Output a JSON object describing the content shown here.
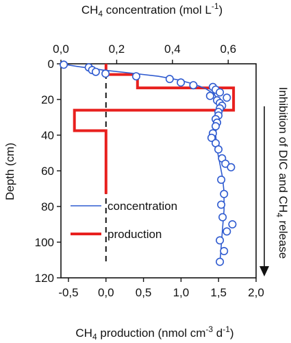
{
  "chart_data": {
    "type": "line",
    "x_top": {
      "label_main": "CH",
      "label_sub": "4",
      "label_rest": " concentration (mol L",
      "label_sup": "-1",
      "label_end": ")",
      "ticks": [
        "0,0",
        "0,2",
        "0,4",
        "0,6"
      ],
      "tick_values": [
        0.0,
        0.2,
        0.4,
        0.6
      ],
      "range": [
        0.0,
        0.7
      ]
    },
    "x_bottom": {
      "label_main": "CH",
      "label_sub": "4",
      "label_rest": " production (nmol cm",
      "label_sup": "-3",
      "label_mid": " d",
      "label_sup2": "-1",
      "label_end": ")",
      "ticks": [
        "-0,5",
        "0,0",
        "0,5",
        "1,0",
        "1,5",
        "2,0"
      ],
      "tick_values": [
        -0.5,
        0.0,
        0.5,
        1.0,
        1.5,
        2.0
      ],
      "range": [
        -0.6,
        2.0
      ]
    },
    "y": {
      "label": "Depth (cm)",
      "ticks": [
        "0",
        "20",
        "40",
        "60",
        "80",
        "100",
        "120"
      ],
      "tick_values": [
        0,
        20,
        40,
        60,
        80,
        100,
        120
      ],
      "range": [
        0,
        120
      ],
      "inverted": true
    },
    "right_annotation": {
      "part1": "Inhibition of DIC and CH",
      "sub": "4",
      "part2": " release"
    },
    "legend": {
      "placement": "lower-left inside",
      "concentration": "concentration",
      "production": "production"
    },
    "series": [
      {
        "name": "concentration",
        "kind": "points",
        "axis": "top",
        "color": "#2f5bd0",
        "points": [
          [
            0.01,
            0.5
          ],
          [
            0.1,
            2.0
          ],
          [
            0.112,
            3.5
          ],
          [
            0.125,
            4.5
          ],
          [
            0.16,
            5.5
          ],
          [
            0.27,
            7.0
          ],
          [
            0.39,
            8.5
          ],
          [
            0.43,
            10.5
          ],
          [
            0.475,
            12.0
          ],
          [
            0.545,
            13.0
          ],
          [
            0.555,
            14.5
          ],
          [
            0.57,
            16.0
          ],
          [
            0.535,
            18.0
          ],
          [
            0.595,
            19.0
          ],
          [
            0.56,
            20.5
          ],
          [
            0.57,
            22.0
          ],
          [
            0.578,
            23.5
          ],
          [
            0.57,
            25.0
          ],
          [
            0.565,
            27.0
          ],
          [
            0.565,
            29.0
          ],
          [
            0.555,
            31.0
          ],
          [
            0.56,
            33.0
          ],
          [
            0.555,
            35.0
          ],
          [
            0.545,
            39.0
          ],
          [
            0.54,
            41.5
          ],
          [
            0.555,
            44.5
          ],
          [
            0.565,
            48.0
          ],
          [
            0.578,
            53.0
          ],
          [
            0.59,
            56.0
          ],
          [
            0.61,
            58.0
          ],
          [
            0.575,
            65.0
          ],
          [
            0.585,
            73.0
          ],
          [
            0.575,
            79.0
          ],
          [
            0.58,
            86.0
          ],
          [
            0.615,
            90.0
          ],
          [
            0.595,
            94.0
          ],
          [
            0.57,
            99.0
          ],
          [
            0.585,
            105.0
          ],
          [
            0.57,
            111.0
          ]
        ]
      },
      {
        "name": "concentration",
        "kind": "fit",
        "axis": "top",
        "color": "#2f5bd0",
        "points": [
          [
            0.0,
            0.0
          ],
          [
            0.06,
            1.5
          ],
          [
            0.15,
            3.5
          ],
          [
            0.25,
            5.2
          ],
          [
            0.35,
            7.0
          ],
          [
            0.42,
            9.0
          ],
          [
            0.48,
            11.5
          ],
          [
            0.52,
            14.0
          ],
          [
            0.55,
            17.0
          ],
          [
            0.565,
            21.0
          ],
          [
            0.565,
            26.0
          ],
          [
            0.56,
            32.0
          ],
          [
            0.555,
            40.0
          ],
          [
            0.56,
            48.0
          ],
          [
            0.57,
            56.0
          ],
          [
            0.58,
            64.0
          ],
          [
            0.585,
            72.0
          ],
          [
            0.585,
            82.0
          ],
          [
            0.58,
            92.0
          ],
          [
            0.575,
            102.0
          ],
          [
            0.57,
            112.0
          ]
        ]
      },
      {
        "name": "production",
        "kind": "step",
        "axis": "bottom",
        "color": "#e8201e",
        "points": [
          [
            0.0,
            0.0
          ],
          [
            0.0,
            6.0
          ],
          [
            0.42,
            6.0
          ],
          [
            0.42,
            13.5
          ],
          [
            1.7,
            13.5
          ],
          [
            1.7,
            26.0
          ],
          [
            -0.42,
            26.0
          ],
          [
            -0.42,
            37.5
          ],
          [
            0.0,
            37.5
          ],
          [
            0.0,
            73.0
          ]
        ]
      },
      {
        "name": "zero-line",
        "kind": "dashed",
        "axis": "bottom",
        "color": "#111111",
        "points": [
          [
            0.0,
            0.0
          ],
          [
            0.0,
            112.0
          ]
        ]
      }
    ]
  }
}
